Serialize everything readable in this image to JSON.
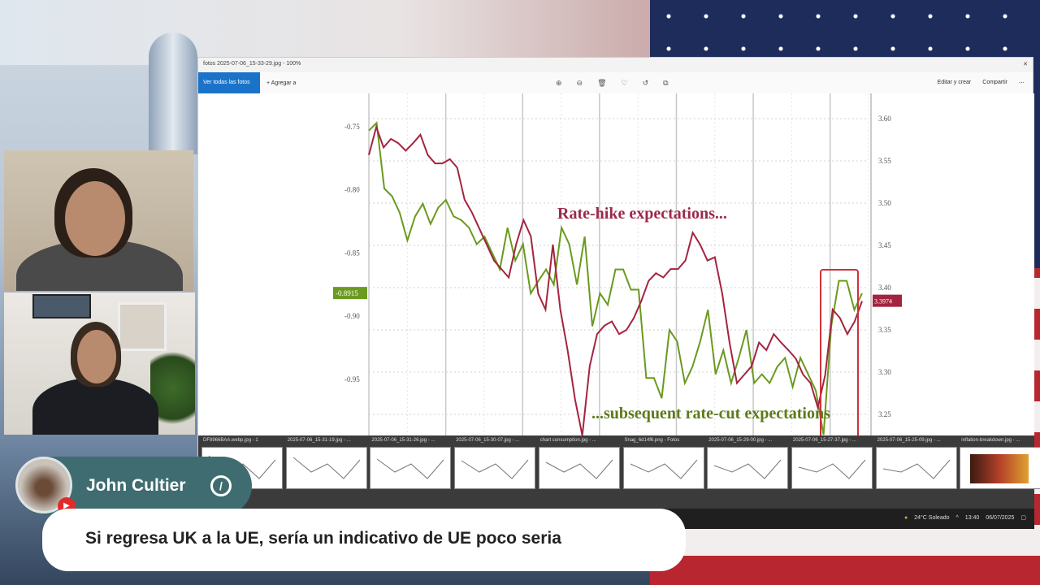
{
  "stream": {
    "chat": {
      "author": "John Cultier",
      "message": "Si regresa UK a la UE, sería un indicativo de UE poco seria",
      "platform_icon": "youtube-icon",
      "badge_icon": "moderator-slash-icon"
    }
  },
  "viewer": {
    "title": "fotos 2025-07-06_15-33-29.jpg - 100%",
    "toolbar": {
      "view_all": "Ver todas las fotos",
      "add_to": "Agregar a",
      "edit": "Editar y crear",
      "share": "Compartir"
    },
    "thumbnails": [
      {
        "label": "DF8966BAA.webp.jpg - 1"
      },
      {
        "label": "2025-07-06_15-31-19.jpg - ..."
      },
      {
        "label": "2025-07-06_15-31-26.jpg - ..."
      },
      {
        "label": "2025-07-06_15-30-07.jpg - ..."
      },
      {
        "label": "chart consumption.jpg - ..."
      },
      {
        "label": "Snag_6d14f6.png - Fotos"
      },
      {
        "label": "2025-07-06_15-29-00.jpg - ..."
      },
      {
        "label": "2025-07-06_15-27-37.jpg - ..."
      },
      {
        "label": "2025-07-06_15-25-09.jpg - ..."
      },
      {
        "label": "inflation-breakdown.jpg - ..."
      }
    ],
    "taskbar": {
      "weather": "24°C Soleado",
      "time": "13:40",
      "date": "06/07/2025"
    }
  },
  "chart_data": {
    "type": "line",
    "title": "",
    "annotations": [
      "Rate-hike expectations...",
      "...subsequent rate-cut expectations"
    ],
    "left_axis": {
      "ticks": [
        "-0.75",
        "-0.80",
        "-0.85",
        "-0.90",
        "-0.95"
      ],
      "range": [
        -0.99,
        -0.735
      ]
    },
    "right_axis": {
      "ticks": [
        "3.60",
        "3.55",
        "3.50",
        "3.45",
        "3.40",
        "3.35",
        "3.30",
        "3.25"
      ],
      "range": [
        3.225,
        3.615
      ]
    },
    "grid": true,
    "highlight_box": "last segment (red outline)",
    "series": [
      {
        "axis": "left",
        "color": "#6a9a1f",
        "last_label": "-0.8915",
        "values": [
          -0.753,
          -0.747,
          -0.799,
          -0.805,
          -0.818,
          -0.84,
          -0.821,
          -0.811,
          -0.827,
          -0.814,
          -0.808,
          -0.821,
          -0.824,
          -0.83,
          -0.843,
          -0.837,
          -0.85,
          -0.863,
          -0.83,
          -0.856,
          -0.843,
          -0.882,
          -0.872,
          -0.863,
          -0.875,
          -0.83,
          -0.843,
          -0.875,
          -0.837,
          -0.908,
          -0.882,
          -0.891,
          -0.863,
          -0.863,
          -0.879,
          -0.879,
          -0.949,
          -0.949,
          -0.965,
          -0.911,
          -0.92,
          -0.953,
          -0.94,
          -0.92,
          -0.895,
          -0.946,
          -0.927,
          -0.953,
          -0.933,
          -0.911,
          -0.953,
          -0.946,
          -0.953,
          -0.94,
          -0.933,
          -0.956,
          -0.933,
          -0.946,
          -0.959,
          -0.994,
          -0.908,
          -0.872,
          -0.872,
          -0.895,
          -0.882
        ]
      },
      {
        "axis": "right",
        "color": "#a3243f",
        "last_label": "3.3974",
        "values": [
          3.557,
          3.59,
          3.566,
          3.576,
          3.571,
          3.562,
          3.571,
          3.581,
          3.557,
          3.547,
          3.547,
          3.552,
          3.542,
          3.504,
          3.489,
          3.47,
          3.451,
          3.432,
          3.422,
          3.412,
          3.451,
          3.48,
          3.461,
          3.393,
          3.374,
          3.451,
          3.374,
          3.326,
          3.268,
          3.225,
          3.307,
          3.345,
          3.355,
          3.36,
          3.345,
          3.35,
          3.364,
          3.384,
          3.408,
          3.417,
          3.412,
          3.422,
          3.422,
          3.432,
          3.465,
          3.451,
          3.432,
          3.436,
          3.393,
          3.335,
          3.287,
          3.297,
          3.307,
          3.335,
          3.326,
          3.345,
          3.335,
          3.326,
          3.316,
          3.297,
          3.287,
          3.258,
          3.297,
          3.374,
          3.364,
          3.345,
          3.36,
          3.384
        ]
      }
    ]
  }
}
